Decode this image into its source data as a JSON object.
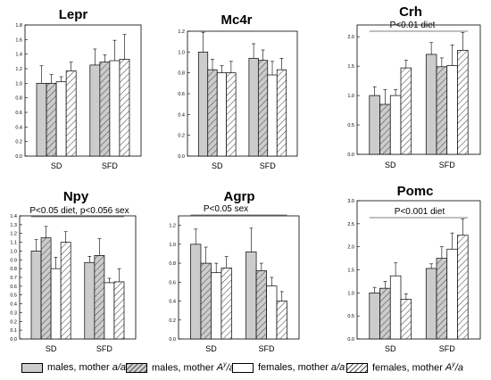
{
  "colors": {
    "male_fill": "#cccccc",
    "female_fill": "#ffffff",
    "stroke": "#000000",
    "hatch": "#555555"
  },
  "series": [
    {
      "name": "males, mother a/a",
      "name_prefix": "males, mother ",
      "name_italic": "a/a",
      "style": "solid-grey"
    },
    {
      "name": "males, mother A^y/a",
      "name_prefix": "males, mother ",
      "name_italic": "A",
      "name_sup": "y",
      "name_suffix": "/a",
      "style": "hatched-grey"
    },
    {
      "name": "females, mother a/a",
      "name_prefix": "females, mother ",
      "name_italic": "a/a",
      "style": "solid-white"
    },
    {
      "name": "females, mother A^y/a",
      "name_prefix": "females, mother ",
      "name_italic": "A",
      "name_sup": "y",
      "name_suffix": "/a",
      "style": "hatched-white"
    }
  ],
  "chart_data": [
    {
      "type": "bar",
      "title": "Lepr",
      "categories": [
        "SD",
        "SFD"
      ],
      "ylim": [
        0,
        1.8
      ],
      "yticks": [
        "0.0",
        "0.2",
        "0.4",
        "0.6",
        "0.8",
        "1.0",
        "1.2",
        "1.4",
        "1.6",
        "1.8"
      ],
      "annotation": "",
      "series": [
        {
          "values": [
            1.0,
            1.25
          ],
          "errors": [
            0.24,
            0.22
          ]
        },
        {
          "values": [
            1.0,
            1.29
          ],
          "errors": [
            0.12,
            0.1
          ]
        },
        {
          "values": [
            1.02,
            1.31
          ],
          "errors": [
            0.07,
            0.28
          ]
        },
        {
          "values": [
            1.17,
            1.33
          ],
          "errors": [
            0.12,
            0.34
          ]
        }
      ]
    },
    {
      "type": "bar",
      "title": "Mc4r",
      "categories": [
        "SD",
        "SFD"
      ],
      "ylim": [
        0,
        1.2
      ],
      "yticks": [
        "0.0",
        "0.2",
        "0.4",
        "0.6",
        "0.8",
        "1.0",
        "1.2"
      ],
      "annotation": "",
      "series": [
        {
          "values": [
            1.0,
            0.94
          ],
          "errors": [
            0.19,
            0.14
          ]
        },
        {
          "values": [
            0.83,
            0.92
          ],
          "errors": [
            0.1,
            0.1
          ]
        },
        {
          "values": [
            0.8,
            0.78
          ],
          "errors": [
            0.07,
            0.13
          ]
        },
        {
          "values": [
            0.8,
            0.83
          ],
          "errors": [
            0.11,
            0.11
          ]
        }
      ]
    },
    {
      "type": "bar",
      "title": "Crh",
      "categories": [
        "SD",
        "SFD"
      ],
      "ylim": [
        0,
        2.2
      ],
      "yticks": [
        "0.0",
        "0.5",
        "1.0",
        "1.5",
        "2.0"
      ],
      "annotation": "P<0.01 diet",
      "series": [
        {
          "values": [
            1.0,
            1.7
          ],
          "errors": [
            0.15,
            0.2
          ]
        },
        {
          "values": [
            0.85,
            1.49
          ],
          "errors": [
            0.25,
            0.15
          ]
        },
        {
          "values": [
            1.0,
            1.51
          ],
          "errors": [
            0.1,
            0.35
          ]
        },
        {
          "values": [
            1.47,
            1.77
          ],
          "errors": [
            0.13,
            0.3
          ]
        }
      ]
    },
    {
      "type": "bar",
      "title": "Npy",
      "categories": [
        "SD",
        "SFD"
      ],
      "ylim": [
        0,
        1.4
      ],
      "yticks": [
        "0.0",
        "0.1",
        "0.2",
        "0.3",
        "0.4",
        "0.5",
        "0.6",
        "0.7",
        "0.8",
        "0.9",
        "1.0",
        "1.1",
        "1.2",
        "1.3",
        "1.4"
      ],
      "annotation": "P<0.05 diet, p<0.056 sex",
      "series": [
        {
          "values": [
            1.0,
            0.87
          ],
          "errors": [
            0.13,
            0.07
          ]
        },
        {
          "values": [
            1.15,
            0.95
          ],
          "errors": [
            0.13,
            0.19
          ]
        },
        {
          "values": [
            0.8,
            0.64
          ],
          "errors": [
            0.13,
            0.05
          ]
        },
        {
          "values": [
            1.1,
            0.65
          ],
          "errors": [
            0.12,
            0.15
          ]
        }
      ]
    },
    {
      "type": "bar",
      "title": "Agrp",
      "categories": [
        "SD",
        "SFD"
      ],
      "ylim": [
        0,
        1.3
      ],
      "yticks": [
        "0.0",
        "0.2",
        "0.4",
        "0.6",
        "0.8",
        "1.0",
        "1.2"
      ],
      "annotation": "P<0.05 sex",
      "series": [
        {
          "values": [
            1.0,
            0.92
          ],
          "errors": [
            0.16,
            0.25
          ]
        },
        {
          "values": [
            0.8,
            0.72
          ],
          "errors": [
            0.17,
            0.08
          ]
        },
        {
          "values": [
            0.7,
            0.56
          ],
          "errors": [
            0.1,
            0.09
          ]
        },
        {
          "values": [
            0.75,
            0.4
          ],
          "errors": [
            0.12,
            0.1
          ]
        }
      ]
    },
    {
      "type": "bar",
      "title": "Pomc",
      "categories": [
        "SD",
        "SFD"
      ],
      "ylim": [
        0,
        3.0
      ],
      "yticks": [
        "0.0",
        "0.5",
        "1.0",
        "1.5",
        "2.0",
        "2.5",
        "3.0"
      ],
      "annotation": "P<0.001 diet",
      "series": [
        {
          "values": [
            1.0,
            1.53
          ],
          "errors": [
            0.12,
            0.1
          ]
        },
        {
          "values": [
            1.1,
            1.75
          ],
          "errors": [
            0.15,
            0.25
          ]
        },
        {
          "values": [
            1.37,
            1.95
          ],
          "errors": [
            0.28,
            0.35
          ]
        },
        {
          "values": [
            0.86,
            2.25
          ],
          "errors": [
            0.12,
            0.35
          ]
        }
      ]
    }
  ]
}
